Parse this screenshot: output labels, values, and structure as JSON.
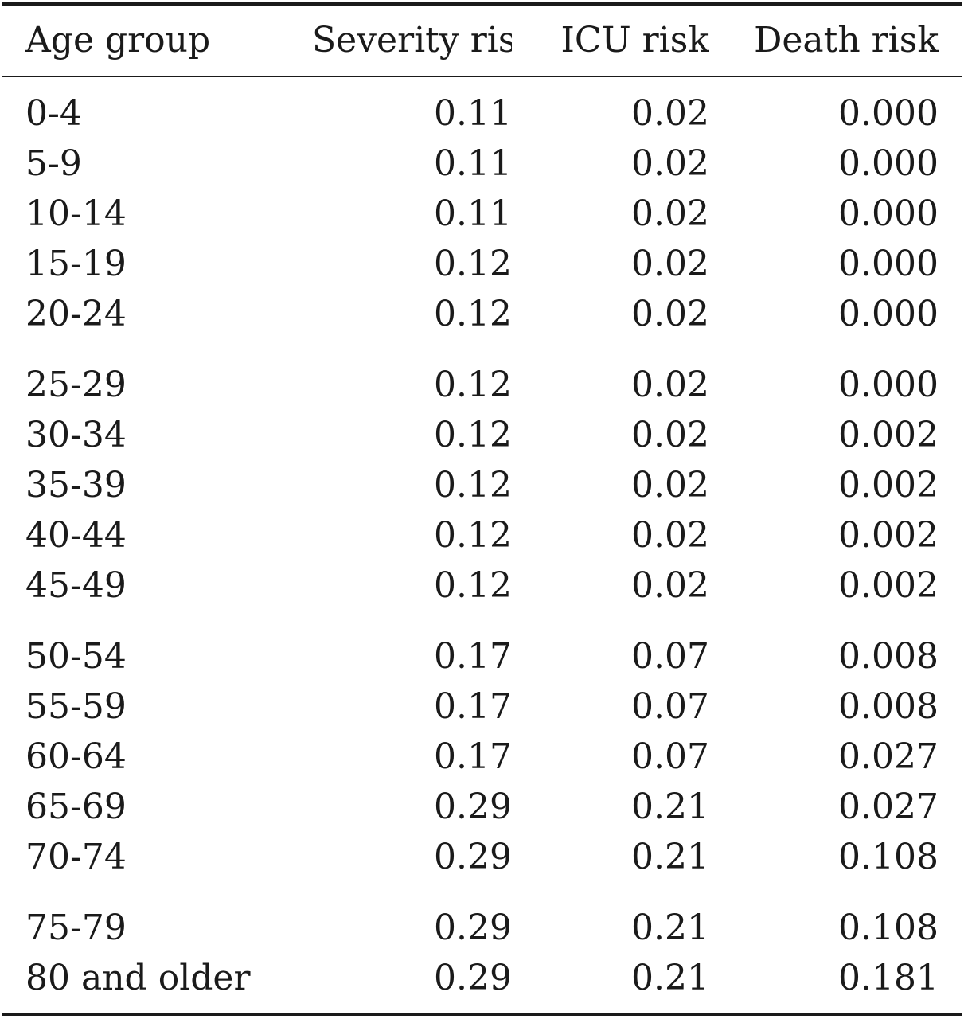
{
  "table": {
    "headers": [
      "Age group",
      "Severity risk",
      "ICU risk",
      "Death risk"
    ],
    "groups": [
      [
        [
          "0-4",
          "0.11",
          "0.02",
          "0.000"
        ],
        [
          "5-9",
          "0.11",
          "0.02",
          "0.000"
        ],
        [
          "10-14",
          "0.11",
          "0.02",
          "0.000"
        ],
        [
          "15-19",
          "0.12",
          "0.02",
          "0.000"
        ],
        [
          "20-24",
          "0.12",
          "0.02",
          "0.000"
        ]
      ],
      [
        [
          "25-29",
          "0.12",
          "0.02",
          "0.000"
        ],
        [
          "30-34",
          "0.12",
          "0.02",
          "0.002"
        ],
        [
          "35-39",
          "0.12",
          "0.02",
          "0.002"
        ],
        [
          "40-44",
          "0.12",
          "0.02",
          "0.002"
        ],
        [
          "45-49",
          "0.12",
          "0.02",
          "0.002"
        ]
      ],
      [
        [
          "50-54",
          "0.17",
          "0.07",
          "0.008"
        ],
        [
          "55-59",
          "0.17",
          "0.07",
          "0.008"
        ],
        [
          "60-64",
          "0.17",
          "0.07",
          "0.027"
        ],
        [
          "65-69",
          "0.29",
          "0.21",
          "0.027"
        ],
        [
          "70-74",
          "0.29",
          "0.21",
          "0.108"
        ]
      ],
      [
        [
          "75-79",
          "0.29",
          "0.21",
          "0.108"
        ],
        [
          "80 and older",
          "0.29",
          "0.21",
          "0.181"
        ]
      ]
    ]
  }
}
